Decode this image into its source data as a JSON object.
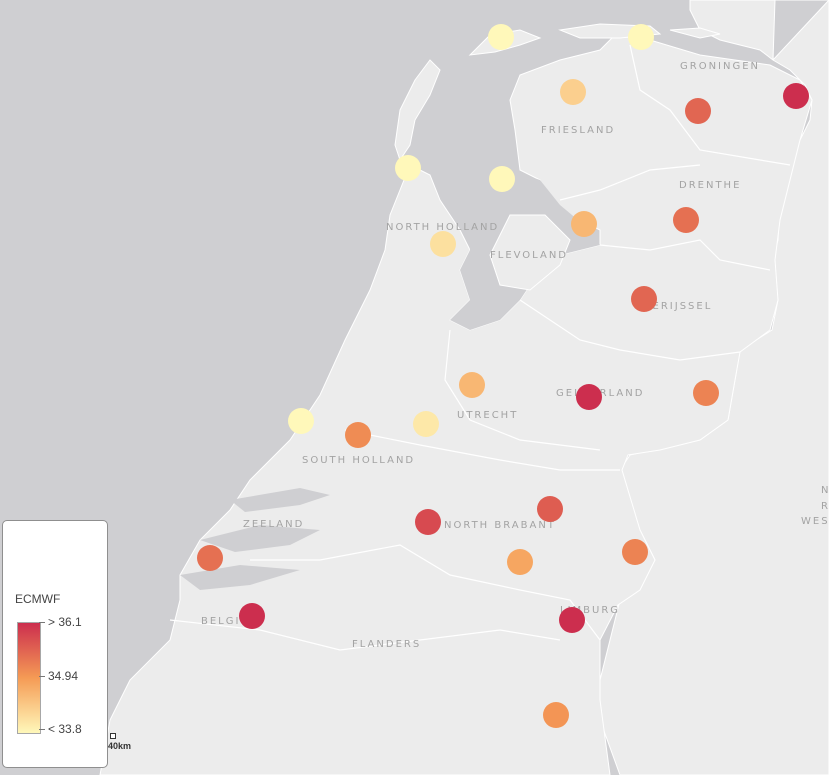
{
  "regions": [
    {
      "name": "FRIESLAND",
      "id": "friesland"
    },
    {
      "name": "GRONINGEN",
      "id": "groningen"
    },
    {
      "name": "DRENTHE",
      "id": "drenthe"
    },
    {
      "name": "NORTH HOLLAND",
      "id": "north-holland"
    },
    {
      "name": "FLEVOLAND",
      "id": "flevoland"
    },
    {
      "name": "OVERIJSSEL",
      "id": "overijssel"
    },
    {
      "name": "UTRECHT",
      "id": "utrecht"
    },
    {
      "name": "GELDERLAND",
      "id": "gelderland"
    },
    {
      "name": "SOUTH HOLLAND",
      "id": "south-holland"
    },
    {
      "name": "ZEELAND",
      "id": "zeeland"
    },
    {
      "name": "NORTH BRABANT",
      "id": "north-brabant"
    },
    {
      "name": "LIMBURG",
      "id": "limburg"
    },
    {
      "name": "BELGIUM",
      "id": "belgium"
    },
    {
      "name": "FLANDERS",
      "id": "flanders"
    },
    {
      "name": "N",
      "id": "edge-n"
    },
    {
      "name": "R",
      "id": "edge-r"
    },
    {
      "name": "WES",
      "id": "edge-wes"
    }
  ],
  "legend": {
    "title": "ECMWF",
    "max_label": "> 36.1",
    "mid_label": "34.94",
    "min_label": "< 33.8",
    "colors": {
      "high": "#cc2e4e",
      "mid": "#f59b55",
      "low": "#fff8ba"
    }
  },
  "scalebar": {
    "label": "40km"
  },
  "stations": [
    {
      "value": 33.8
    },
    {
      "value": 33.8
    },
    {
      "value": 34.3
    },
    {
      "value": 33.8
    },
    {
      "value": 33.8
    },
    {
      "value": 35.5
    },
    {
      "value": 36.1
    },
    {
      "value": 34.6
    },
    {
      "value": 35.4
    },
    {
      "value": 34.1
    },
    {
      "value": 35.5
    },
    {
      "value": 34.6
    },
    {
      "value": 36.1
    },
    {
      "value": 35.2
    },
    {
      "value": 33.8
    },
    {
      "value": 34.0
    },
    {
      "value": 35.1
    },
    {
      "value": 35.6
    },
    {
      "value": 35.8
    },
    {
      "value": 35.2
    },
    {
      "value": 34.8
    },
    {
      "value": 35.4
    },
    {
      "value": 36.1
    },
    {
      "value": 36.1
    },
    {
      "value": 35.0
    }
  ]
}
